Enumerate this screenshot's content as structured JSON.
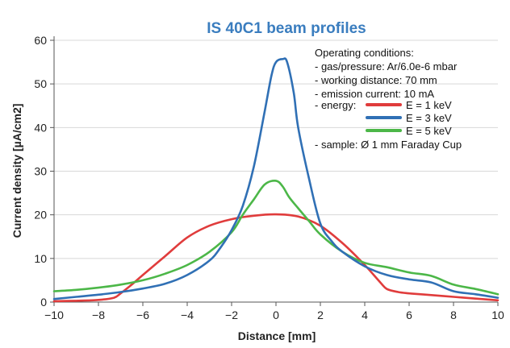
{
  "chart_data": {
    "type": "line",
    "title": "IS 40C1 beam profiles",
    "xlabel": "Distance [mm]",
    "ylabel": "Current density [µA/cm2]",
    "xlim": [
      -10,
      10
    ],
    "ylim": [
      0,
      60
    ],
    "x_ticks": [
      -10,
      -8,
      -6,
      -4,
      -2,
      0,
      2,
      4,
      6,
      8,
      10
    ],
    "y_ticks": [
      0,
      10,
      20,
      30,
      40,
      50,
      60
    ],
    "x_tick_labels": [
      "−10",
      "−8",
      "−6",
      "−4",
      "−2",
      "0",
      "2",
      "4",
      "6",
      "8",
      "10"
    ],
    "y_tick_labels": [
      "0",
      "10",
      "20",
      "30",
      "40",
      "50",
      "60"
    ],
    "grid": "horizontal",
    "legend_position": "top-right",
    "annotation": {
      "heading": "Operating conditions:",
      "lines": [
        "- gas/pressure: Ar/6.0e-6 mbar",
        "- working distance: 70 mm",
        "- emission current: 10 mA"
      ],
      "energy_label": "- energy:",
      "sample": "- sample: Ø 1 mm Faraday Cup"
    },
    "series": [
      {
        "name": "E = 1 keV",
        "color": "#e03c3c",
        "x": [
          -10,
          -9,
          -8,
          -7.3,
          -7,
          -6.5,
          -6,
          -5,
          -4,
          -3,
          -2,
          -1,
          0,
          1,
          2,
          3,
          4,
          4.7,
          5,
          5.5,
          6,
          7,
          8,
          9,
          10
        ],
        "y": [
          0.2,
          0.3,
          0.5,
          1.0,
          2.0,
          4.0,
          6.2,
          10.5,
          14.8,
          17.5,
          19.0,
          19.8,
          20.1,
          19.6,
          17.5,
          13.5,
          8.5,
          4.5,
          3.0,
          2.3,
          2.0,
          1.6,
          1.2,
          0.8,
          0.4
        ]
      },
      {
        "name": "E = 3 keV",
        "color": "#3070b5",
        "x": [
          -10,
          -9,
          -8,
          -7,
          -6,
          -5,
          -4,
          -3,
          -2.5,
          -2,
          -1.5,
          -1,
          -0.5,
          -0.2,
          0,
          0.3,
          0.5,
          0.8,
          1,
          1.5,
          2,
          2.5,
          3,
          4,
          5,
          6,
          7,
          8,
          9,
          10
        ],
        "y": [
          0.7,
          1.2,
          1.7,
          2.3,
          3.1,
          4.2,
          6.2,
          9.5,
          12.5,
          16.5,
          22.0,
          31.0,
          44.0,
          52.0,
          55.0,
          55.7,
          55.0,
          48.0,
          40.0,
          28.0,
          18.0,
          14.0,
          11.5,
          8.2,
          6.2,
          5.2,
          4.5,
          2.5,
          1.8,
          1.0
        ]
      },
      {
        "name": "E = 5 keV",
        "color": "#4cb748",
        "x": [
          -10,
          -9,
          -8,
          -7,
          -6,
          -5,
          -4,
          -3,
          -2,
          -1.5,
          -1,
          -0.5,
          0,
          0.3,
          0.6,
          1,
          1.5,
          2,
          3,
          4,
          5,
          6,
          7,
          8,
          9,
          10
        ],
        "y": [
          2.5,
          2.8,
          3.3,
          4.0,
          5.0,
          6.5,
          8.5,
          11.5,
          16.0,
          20.0,
          23.5,
          27.0,
          27.8,
          26.5,
          24.0,
          21.5,
          18.5,
          15.5,
          11.5,
          9.0,
          8.0,
          6.8,
          6.0,
          4.0,
          3.0,
          1.8
        ]
      }
    ]
  }
}
